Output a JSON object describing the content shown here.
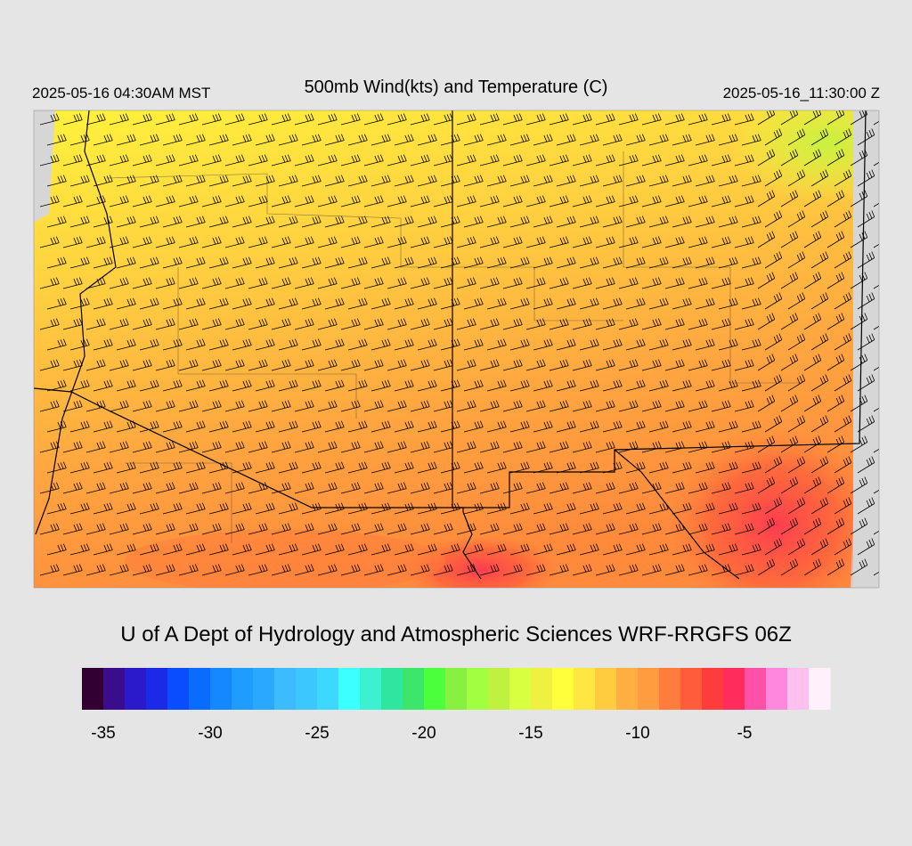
{
  "header": {
    "local_time": "2025-05-16 04:30AM MST",
    "title": "500mb Wind(kts) and Temperature (C)",
    "valid_time": "2025-05-16_11:30:00 Z"
  },
  "credit": "U of A Dept of Hydrology and Atmospheric Sciences WRF-RRGFS 06Z",
  "colorbar": {
    "bins": [
      -36,
      -35,
      -34,
      -33,
      -32,
      -31,
      -30,
      -29,
      -28,
      -27,
      -26,
      -25,
      -24,
      -23,
      -22,
      -21,
      -20,
      -19,
      -18,
      -17,
      -16,
      -15,
      -14,
      -13,
      -12,
      -11,
      -10,
      -9,
      -8,
      -7,
      -6,
      -5,
      -4,
      -3,
      -2,
      -1
    ],
    "colors": [
      "#330033",
      "#3a0d8c",
      "#2a1acc",
      "#1a2ae6",
      "#0a4cff",
      "#0a6cff",
      "#1488ff",
      "#1e9cff",
      "#2aa8ff",
      "#3cbcff",
      "#3cc8ff",
      "#3cd8ff",
      "#3cffff",
      "#3cf0d0",
      "#2ee6a0",
      "#3ce66a",
      "#4cff3c",
      "#88f040",
      "#a0ff40",
      "#c0f040",
      "#d8ff40",
      "#f0f040",
      "#ffff3c",
      "#ffe640",
      "#ffcc40",
      "#ffb040",
      "#ff9c40",
      "#ff7c3c",
      "#ff5c3c",
      "#ff3c3c",
      "#ff2c5c",
      "#ff50a8",
      "#ff88dd",
      "#ffc0f0",
      "#fff0fc"
    ],
    "ticks": [
      -35,
      -30,
      -25,
      -20,
      -15,
      -10,
      -5
    ]
  }
}
